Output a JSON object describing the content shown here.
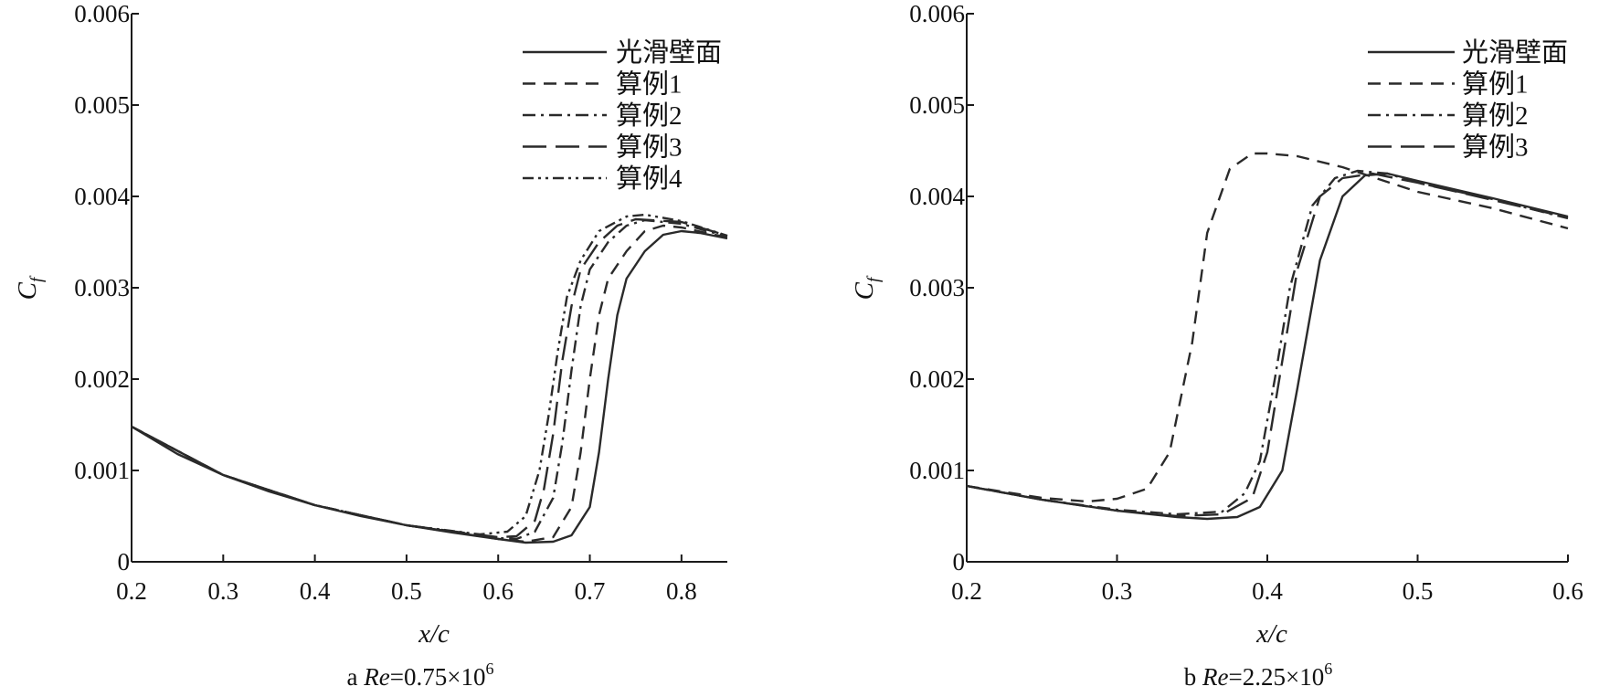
{
  "chart_data": [
    {
      "type": "line",
      "caption_prefix": "a ",
      "caption_var": "Re",
      "caption_eq": "=0.75×10",
      "caption_exp": "6",
      "xlabel": "x/c",
      "ylabel": "C",
      "ylabel_sub": "f",
      "xlim": [
        0.2,
        0.85
      ],
      "ylim": [
        0,
        0.006
      ],
      "xticks": [
        "0.2",
        "0.3",
        "0.4",
        "0.5",
        "0.6",
        "0.7",
        "0.8"
      ],
      "yticks": [
        "0",
        "0.001",
        "0.002",
        "0.003",
        "0.004",
        "0.005",
        "0.006"
      ],
      "grid": false,
      "legend_position": "top-right",
      "series": [
        {
          "name": "光滑壁面",
          "dash": "solid",
          "points": [
            [
              0.2,
              0.00148
            ],
            [
              0.25,
              0.00118
            ],
            [
              0.3,
              0.00095
            ],
            [
              0.35,
              0.00077
            ],
            [
              0.4,
              0.00062
            ],
            [
              0.45,
              0.0005
            ],
            [
              0.5,
              0.0004
            ],
            [
              0.55,
              0.00032
            ],
            [
              0.6,
              0.00025
            ],
            [
              0.63,
              0.00021
            ],
            [
              0.66,
              0.00022
            ],
            [
              0.68,
              0.00029
            ],
            [
              0.7,
              0.0006
            ],
            [
              0.71,
              0.0012
            ],
            [
              0.72,
              0.002
            ],
            [
              0.73,
              0.0027
            ],
            [
              0.74,
              0.0031
            ],
            [
              0.76,
              0.0034
            ],
            [
              0.78,
              0.00358
            ],
            [
              0.8,
              0.00362
            ],
            [
              0.82,
              0.0036
            ],
            [
              0.85,
              0.00354
            ]
          ]
        },
        {
          "name": "算例1",
          "dash": "dash",
          "points": [
            [
              0.2,
              0.00148
            ],
            [
              0.3,
              0.00095
            ],
            [
              0.4,
              0.00062
            ],
            [
              0.5,
              0.0004
            ],
            [
              0.6,
              0.00025
            ],
            [
              0.63,
              0.00022
            ],
            [
              0.66,
              0.00027
            ],
            [
              0.68,
              0.0006
            ],
            [
              0.69,
              0.0012
            ],
            [
              0.7,
              0.002
            ],
            [
              0.71,
              0.0027
            ],
            [
              0.72,
              0.0031
            ],
            [
              0.74,
              0.0034
            ],
            [
              0.76,
              0.00362
            ],
            [
              0.78,
              0.00368
            ],
            [
              0.8,
              0.00366
            ],
            [
              0.85,
              0.00355
            ]
          ]
        },
        {
          "name": "算例2",
          "dash": "dashdot",
          "points": [
            [
              0.2,
              0.00148
            ],
            [
              0.3,
              0.00095
            ],
            [
              0.4,
              0.00062
            ],
            [
              0.5,
              0.0004
            ],
            [
              0.6,
              0.00026
            ],
            [
              0.62,
              0.00025
            ],
            [
              0.64,
              0.00033
            ],
            [
              0.66,
              0.0007
            ],
            [
              0.67,
              0.0013
            ],
            [
              0.68,
              0.0021
            ],
            [
              0.69,
              0.0028
            ],
            [
              0.7,
              0.0032
            ],
            [
              0.72,
              0.0035
            ],
            [
              0.74,
              0.00368
            ],
            [
              0.76,
              0.00374
            ],
            [
              0.8,
              0.0037
            ],
            [
              0.85,
              0.00356
            ]
          ]
        },
        {
          "name": "算例3",
          "dash": "longdash",
          "points": [
            [
              0.2,
              0.00148
            ],
            [
              0.3,
              0.00095
            ],
            [
              0.4,
              0.00062
            ],
            [
              0.5,
              0.0004
            ],
            [
              0.6,
              0.00027
            ],
            [
              0.62,
              0.00028
            ],
            [
              0.64,
              0.00045
            ],
            [
              0.65,
              0.0008
            ],
            [
              0.66,
              0.0014
            ],
            [
              0.67,
              0.0022
            ],
            [
              0.68,
              0.0028
            ],
            [
              0.69,
              0.0032
            ],
            [
              0.71,
              0.0035
            ],
            [
              0.73,
              0.00368
            ],
            [
              0.75,
              0.00375
            ],
            [
              0.8,
              0.00372
            ],
            [
              0.85,
              0.00357
            ]
          ]
        },
        {
          "name": "算例4",
          "dash": "dashdotdot",
          "points": [
            [
              0.2,
              0.00148
            ],
            [
              0.3,
              0.00095
            ],
            [
              0.4,
              0.00062
            ],
            [
              0.5,
              0.0004
            ],
            [
              0.58,
              0.0003
            ],
            [
              0.61,
              0.00033
            ],
            [
              0.63,
              0.0005
            ],
            [
              0.645,
              0.001
            ],
            [
              0.655,
              0.0016
            ],
            [
              0.665,
              0.0023
            ],
            [
              0.675,
              0.0029
            ],
            [
              0.69,
              0.0033
            ],
            [
              0.71,
              0.00362
            ],
            [
              0.74,
              0.00378
            ],
            [
              0.76,
              0.0038
            ],
            [
              0.8,
              0.00373
            ],
            [
              0.85,
              0.00357
            ]
          ]
        }
      ]
    },
    {
      "type": "line",
      "caption_prefix": "b ",
      "caption_var": "Re",
      "caption_eq": "=2.25×10",
      "caption_exp": "6",
      "xlabel": "x/c",
      "ylabel": "C",
      "ylabel_sub": "f",
      "xlim": [
        0.2,
        0.6
      ],
      "ylim": [
        0,
        0.006
      ],
      "xticks": [
        "0.2",
        "0.3",
        "0.4",
        "0.5",
        "0.6"
      ],
      "yticks": [
        "0",
        "0.001",
        "0.002",
        "0.003",
        "0.004",
        "0.005",
        "0.006"
      ],
      "grid": false,
      "legend_position": "top-right",
      "series": [
        {
          "name": "光滑壁面",
          "dash": "solid",
          "points": [
            [
              0.2,
              0.00083
            ],
            [
              0.25,
              0.00068
            ],
            [
              0.3,
              0.00056
            ],
            [
              0.34,
              0.00049
            ],
            [
              0.36,
              0.00047
            ],
            [
              0.38,
              0.00049
            ],
            [
              0.395,
              0.0006
            ],
            [
              0.41,
              0.001
            ],
            [
              0.42,
              0.0019
            ],
            [
              0.435,
              0.0033
            ],
            [
              0.45,
              0.004
            ],
            [
              0.465,
              0.00423
            ],
            [
              0.48,
              0.00425
            ],
            [
              0.5,
              0.00417
            ],
            [
              0.55,
              0.00398
            ],
            [
              0.6,
              0.00378
            ]
          ]
        },
        {
          "name": "算例1",
          "dash": "dash",
          "points": [
            [
              0.2,
              0.00083
            ],
            [
              0.25,
              0.0007
            ],
            [
              0.28,
              0.00066
            ],
            [
              0.3,
              0.00069
            ],
            [
              0.32,
              0.0008
            ],
            [
              0.335,
              0.0012
            ],
            [
              0.35,
              0.0024
            ],
            [
              0.36,
              0.0036
            ],
            [
              0.375,
              0.0043
            ],
            [
              0.39,
              0.00447
            ],
            [
              0.4,
              0.00447
            ],
            [
              0.42,
              0.00444
            ],
            [
              0.45,
              0.00432
            ],
            [
              0.5,
              0.00405
            ],
            [
              0.55,
              0.00387
            ],
            [
              0.6,
              0.00365
            ]
          ]
        },
        {
          "name": "算例2",
          "dash": "dashdot",
          "points": [
            [
              0.2,
              0.00083
            ],
            [
              0.25,
              0.00068
            ],
            [
              0.3,
              0.00057
            ],
            [
              0.34,
              0.00052
            ],
            [
              0.37,
              0.00055
            ],
            [
              0.385,
              0.00075
            ],
            [
              0.395,
              0.0011
            ],
            [
              0.405,
              0.002
            ],
            [
              0.415,
              0.003
            ],
            [
              0.43,
              0.0039
            ],
            [
              0.445,
              0.0042
            ],
            [
              0.46,
              0.00428
            ],
            [
              0.48,
              0.00425
            ],
            [
              0.5,
              0.00415
            ],
            [
              0.55,
              0.00397
            ],
            [
              0.6,
              0.00376
            ]
          ]
        },
        {
          "name": "算例3",
          "dash": "longdash",
          "points": [
            [
              0.2,
              0.00083
            ],
            [
              0.25,
              0.00068
            ],
            [
              0.3,
              0.00056
            ],
            [
              0.34,
              0.0005
            ],
            [
              0.37,
              0.00052
            ],
            [
              0.39,
              0.0007
            ],
            [
              0.4,
              0.0012
            ],
            [
              0.41,
              0.0022
            ],
            [
              0.42,
              0.0032
            ],
            [
              0.435,
              0.004
            ],
            [
              0.45,
              0.0042
            ],
            [
              0.47,
              0.00425
            ],
            [
              0.5,
              0.00415
            ],
            [
              0.55,
              0.00396
            ],
            [
              0.6,
              0.00377
            ]
          ]
        }
      ]
    }
  ]
}
